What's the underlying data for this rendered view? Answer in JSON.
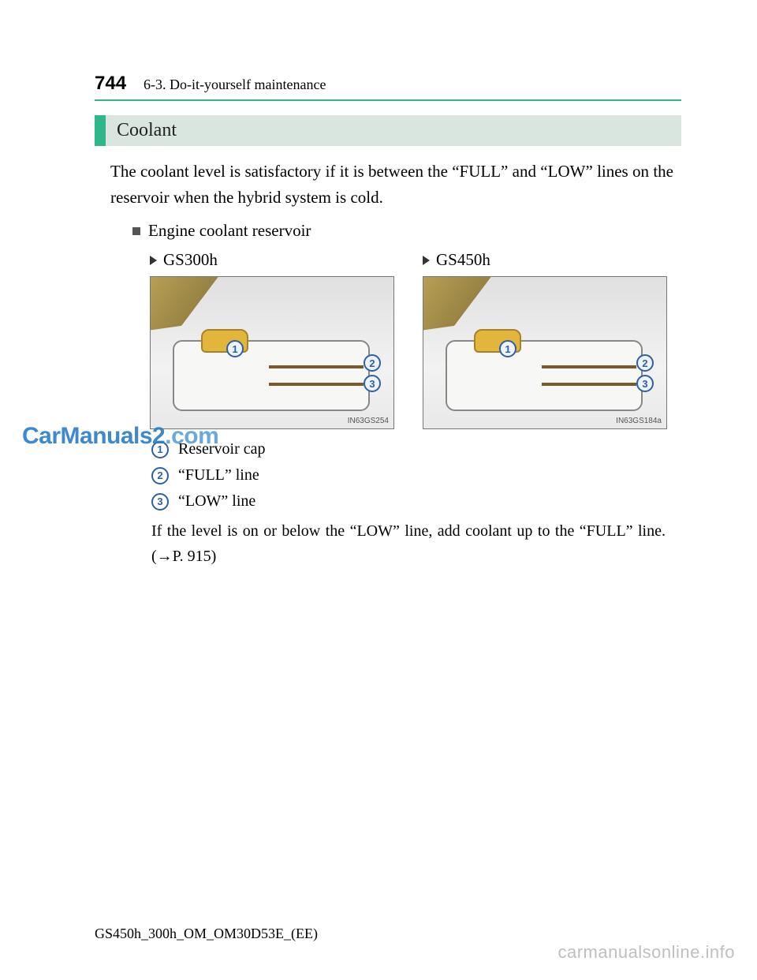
{
  "page_number": "744",
  "chapter": "6-3. Do-it-yourself maintenance",
  "section_title": "Coolant",
  "intro": "The coolant level is satisfactory if it is between the “FULL” and “LOW” lines on the reservoir when the hybrid system is cold.",
  "subhead": "Engine coolant reservoir",
  "models": {
    "left": {
      "label": "GS300h",
      "fig_ref": "IN63GS254"
    },
    "right": {
      "label": "GS450h",
      "fig_ref": "IN63GS184a"
    }
  },
  "callouts": {
    "c1": "1",
    "c2": "2",
    "c3": "3"
  },
  "legend": {
    "i1": {
      "num": "1",
      "text": "Reservoir cap"
    },
    "i2": {
      "num": "2",
      "text": "“FULL” line"
    },
    "i3": {
      "num": "3",
      "text": "“LOW” line"
    }
  },
  "note": "If the level is on or below the “LOW” line, add coolant up to the “FULL” line. (→P. 915)",
  "footer": "GS450h_300h_OM_OM30D53E_(EE)",
  "watermark_left_a": "CarManuals2",
  "watermark_left_b": ".com",
  "watermark_right": "carmanualsonline.info",
  "colors": {
    "accent": "#2fb68a",
    "section_bg": "#d9e6e0",
    "callout_border": "#2f5fa8",
    "cap_fill": "#e2b63a",
    "watermark_left": "#2a7cc7",
    "watermark_right": "#bfbfbf"
  }
}
